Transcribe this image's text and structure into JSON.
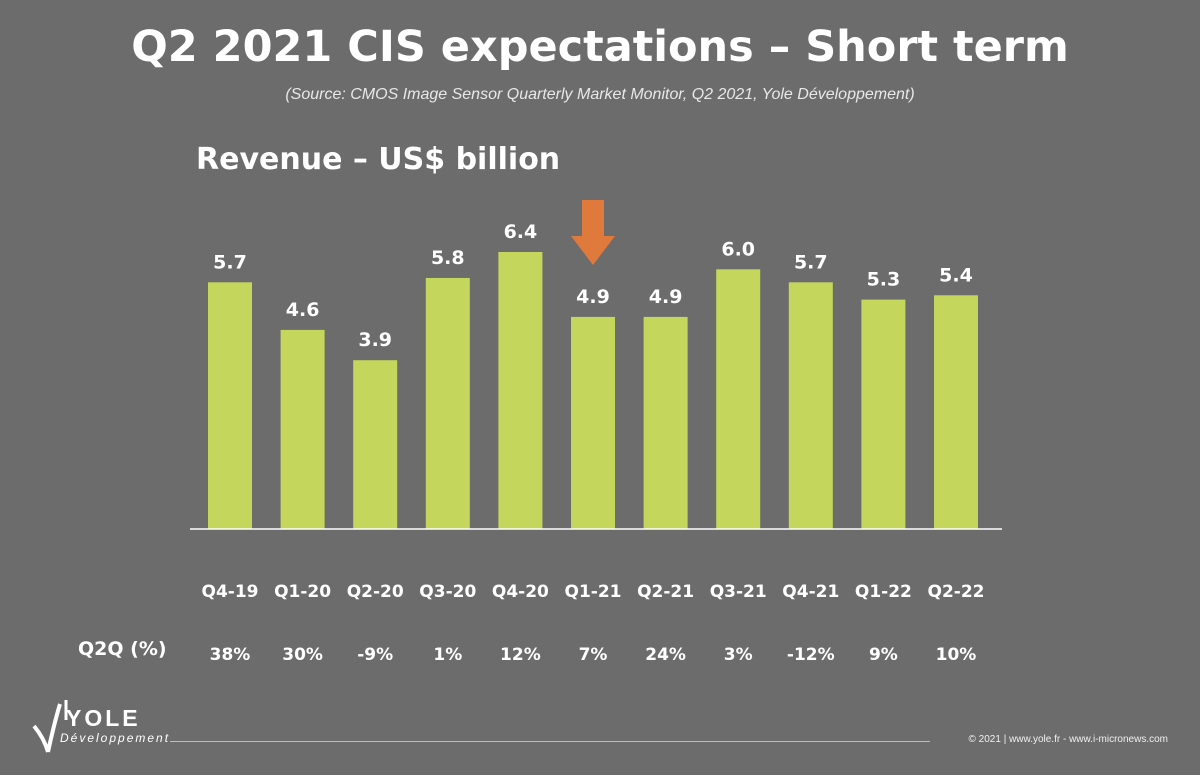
{
  "header": {
    "title": "Q2 2021 CIS expectations – Short term",
    "subtitle": "(Source: CMOS Image Sensor Quarterly Market Monitor, Q2 2021, Yole Développement)"
  },
  "chart_data": {
    "type": "bar",
    "title": "Revenue – US$ billion",
    "categories": [
      "Q4-19",
      "Q1-20",
      "Q2-20",
      "Q3-20",
      "Q4-20",
      "Q1-21",
      "Q2-21",
      "Q3-21",
      "Q4-21",
      "Q1-22",
      "Q2-22"
    ],
    "values": [
      5.7,
      4.6,
      3.9,
      5.8,
      6.4,
      4.9,
      4.9,
      6.0,
      5.7,
      5.3,
      5.4
    ],
    "value_labels": [
      "5.7",
      "4.6",
      "3.9",
      "5.8",
      "6.4",
      "4.9",
      "4.9",
      "6.0",
      "5.7",
      "5.3",
      "5.4"
    ],
    "ylim": [
      0,
      6.4
    ],
    "grid": false,
    "highlight_category": "Q1-21",
    "q2q_label": "Q2Q (%)",
    "q2q": [
      "38%",
      "30%",
      "-9%",
      "1%",
      "12%",
      "7%",
      "24%",
      "3%",
      "-12%",
      "9%",
      "10%"
    ],
    "colors": {
      "bar": "#c5d65c",
      "arrow": "#e07a3c",
      "axis": "#ffffff"
    }
  },
  "footer": {
    "logo_text": "YOLE",
    "logo_subtext": "Développement",
    "copyright": "© 2021 | www.yole.fr - www.i-micronews.com"
  }
}
